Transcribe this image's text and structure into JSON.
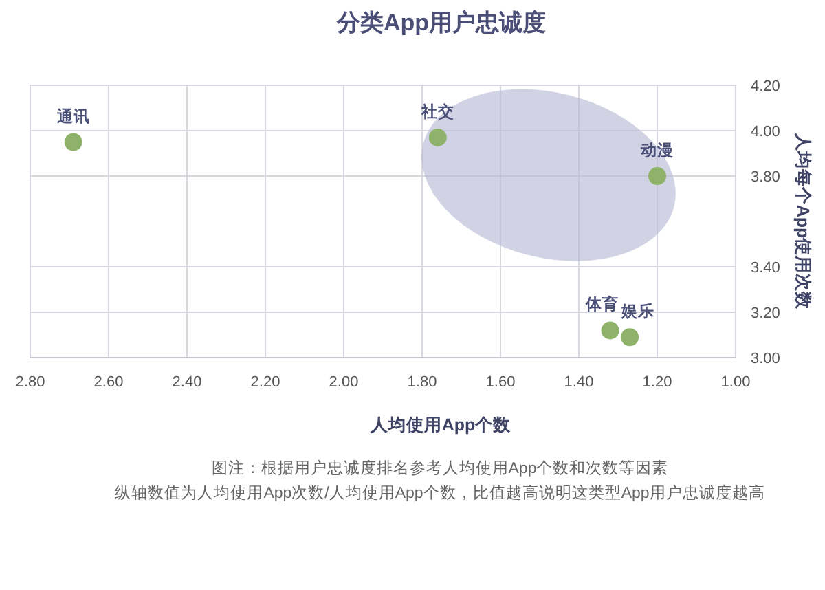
{
  "chart_data": {
    "type": "scatter",
    "title": "分类App用户忠诚度",
    "xlabel": "人均使用App个数",
    "ylabel": "人均每个App使用次数",
    "x": [
      2.69,
      1.76,
      1.2,
      1.32,
      1.27
    ],
    "values": [
      3.95,
      3.97,
      3.8,
      3.12,
      3.09
    ],
    "color": "#8fb26a",
    "marker": "circle",
    "xlim": [
      2.8,
      1.0
    ],
    "xticks": [
      {
        "value": 2.8,
        "label": "2.80"
      },
      {
        "value": 2.6,
        "label": "2.60"
      },
      {
        "value": 2.4,
        "label": "2.40"
      },
      {
        "value": 2.2,
        "label": "2.20"
      },
      {
        "value": 2.0,
        "label": "2.00"
      },
      {
        "value": 1.8,
        "label": "1.80"
      },
      {
        "value": 1.6,
        "label": "1.60"
      },
      {
        "value": 1.4,
        "label": "1.40"
      },
      {
        "value": 1.2,
        "label": "1.20"
      },
      {
        "value": 1.0,
        "label": "1.00"
      }
    ],
    "ylim": [
      3.0,
      4.2
    ],
    "yticks": [
      {
        "value": 3.0,
        "label": "3.00"
      },
      {
        "value": 3.2,
        "label": "3.20"
      },
      {
        "value": 3.4,
        "label": "3.40"
      },
      {
        "value": 3.8,
        "label": "3.80"
      },
      {
        "value": 4.0,
        "label": "4.00"
      },
      {
        "value": 4.2,
        "label": "4.20"
      }
    ],
    "grid": true,
    "annotations": [
      {
        "text": "通讯",
        "x": 2.69,
        "y": 3.95
      },
      {
        "text": "社交",
        "x": 1.76,
        "y": 3.97
      },
      {
        "text": "动漫",
        "x": 1.2,
        "y": 3.8
      },
      {
        "text": "体育",
        "x": 1.32,
        "y": 3.12
      },
      {
        "text": "娱乐",
        "x": 1.27,
        "y": 3.09
      },
      "图注：根据用户忠诚度排名参考人均使用App个数和次数等因素",
      "纵轴数值为人均使用App次数/人均使用App个数，比值越高说明这类型App用户忠诚度越高"
    ]
  }
}
